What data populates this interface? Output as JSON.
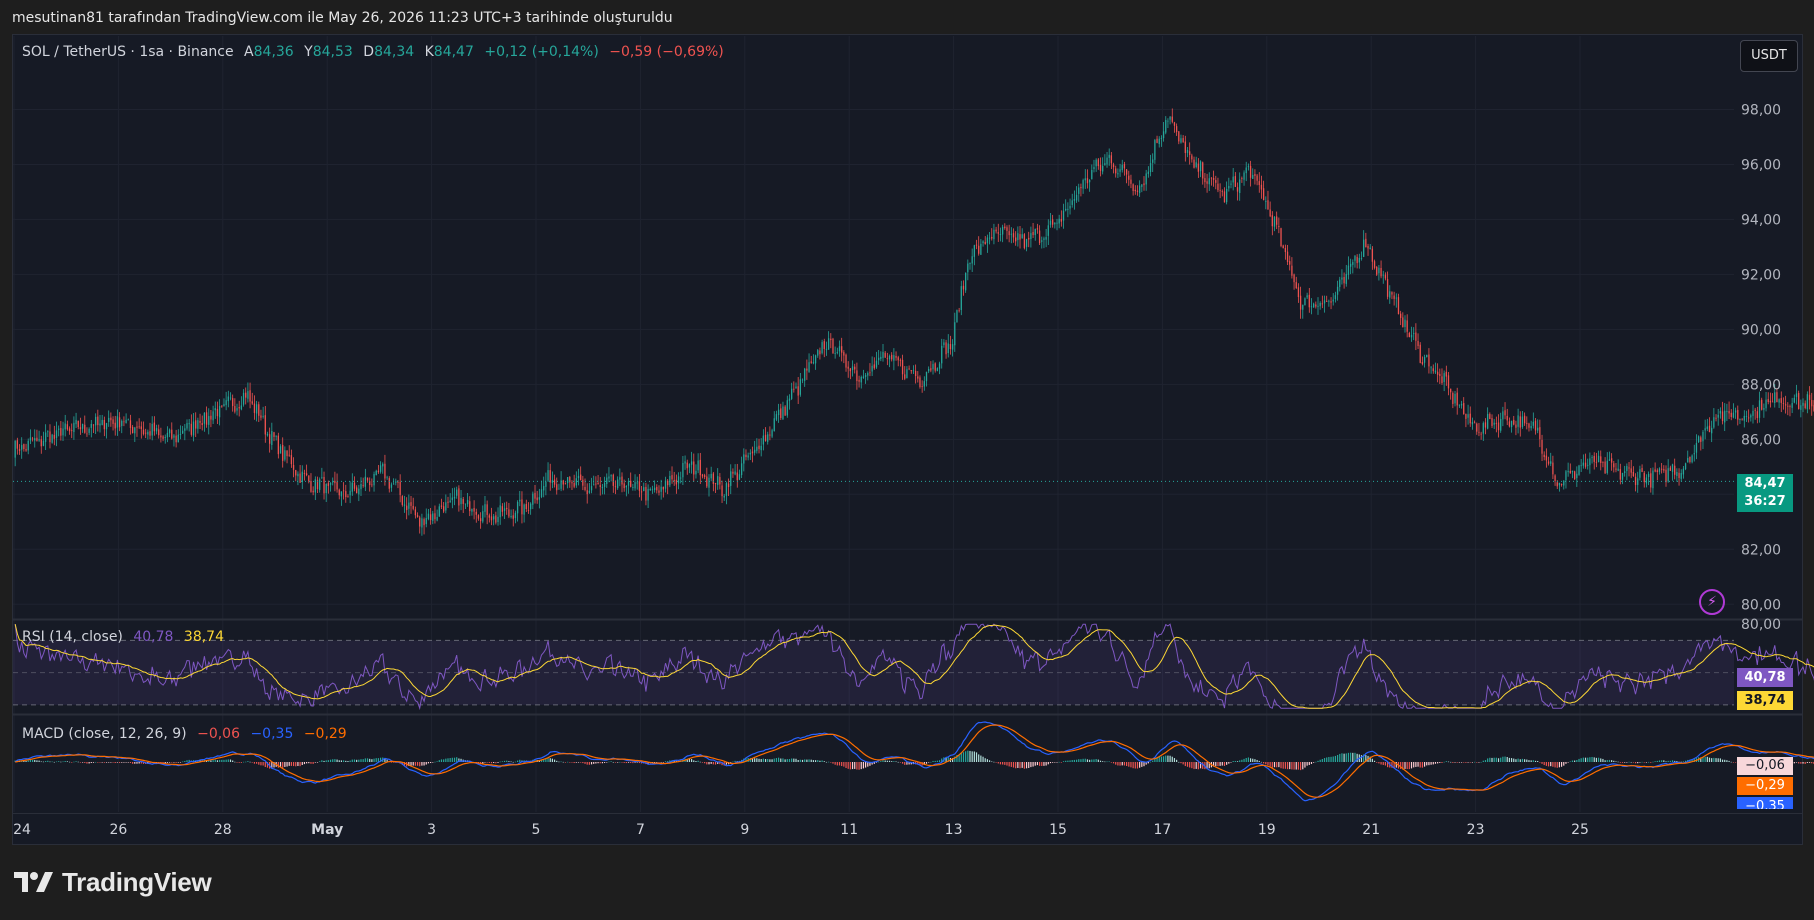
{
  "header": {
    "caption": "mesutinan81 tarafından TradingView.com ile May 26, 2026 11:23 UTC+3 tarihinde oluşturuldu"
  },
  "legend": {
    "symbol": "SOL / TetherUS · 1sa · Binance",
    "open_label": "A",
    "open_value": "84,36",
    "high_label": "Y",
    "high_value": "84,53",
    "low_label": "D",
    "low_value": "84,34",
    "close_label": "K",
    "close_value": "84,47",
    "change_bar": "+0,12 (+0,14%)",
    "change_day": "−0,59 (−0,69%)"
  },
  "currency_button": "USDT",
  "price_tag": {
    "price": "84,47",
    "countdown": "36:27"
  },
  "rsi": {
    "title": "RSI (14, close)",
    "rsi_value": "40,78",
    "ma_value": "38,74",
    "top_label": "80,00"
  },
  "macd": {
    "title": "MACD (close, 12, 26, 9)",
    "hist_value": "−0,06",
    "macd_value": "−0,35",
    "signal_value": "−0,29"
  },
  "brand": {
    "name": "TradingView"
  },
  "colors": {
    "up": "#26a69a",
    "down": "#ef5350",
    "rsi": "#7e57c2",
    "rsi_ma": "#fdd835",
    "macd": "#2962ff",
    "signal": "#ff6d00",
    "background": "#161a25"
  },
  "chart_data": [
    {
      "type": "candlestick",
      "title": "SOL / TetherUS · 1sa · Binance",
      "x_ticks": [
        "24",
        "26",
        "28",
        "May",
        "3",
        "5",
        "7",
        "9",
        "11",
        "13",
        "15",
        "17",
        "19",
        "21",
        "23",
        "25"
      ],
      "y_ticks": [
        "80,00",
        "82,00",
        "84,00",
        "86,00",
        "88,00",
        "90,00",
        "92,00",
        "94,00",
        "96,00",
        "98,00"
      ],
      "ylim": [
        79.5,
        99.8
      ],
      "last_price": 84.47,
      "close_path": [
        [
          0,
          85.6
        ],
        [
          1.0,
          86.3
        ],
        [
          2.0,
          86.7
        ],
        [
          3.0,
          86.0
        ],
        [
          3.5,
          86.6
        ],
        [
          4.5,
          87.6
        ],
        [
          5.0,
          85.9
        ],
        [
          5.6,
          84.5
        ],
        [
          6.4,
          84.0
        ],
        [
          7.1,
          84.8
        ],
        [
          7.8,
          83.0
        ],
        [
          8.5,
          83.8
        ],
        [
          9.2,
          83.2
        ],
        [
          9.8,
          83.5
        ],
        [
          10.3,
          84.6
        ],
        [
          11.0,
          84.2
        ],
        [
          11.6,
          84.4
        ],
        [
          12.3,
          84.0
        ],
        [
          13.0,
          85.1
        ],
        [
          13.6,
          84.2
        ],
        [
          14.3,
          85.8
        ],
        [
          15.0,
          87.8
        ],
        [
          15.6,
          89.6
        ],
        [
          16.2,
          88.3
        ],
        [
          16.7,
          89.0
        ],
        [
          17.4,
          88.2
        ],
        [
          18.0,
          89.6
        ],
        [
          18.3,
          92.6
        ],
        [
          18.8,
          93.5
        ],
        [
          19.4,
          93.2
        ],
        [
          20.0,
          93.8
        ],
        [
          20.6,
          95.6
        ],
        [
          21.0,
          96.2
        ],
        [
          21.6,
          95.1
        ],
        [
          22.1,
          97.8
        ],
        [
          22.6,
          96.0
        ],
        [
          23.2,
          94.9
        ],
        [
          23.7,
          95.8
        ],
        [
          24.1,
          94.2
        ],
        [
          24.7,
          90.9
        ],
        [
          25.3,
          91.1
        ],
        [
          25.9,
          93.2
        ],
        [
          26.3,
          91.6
        ],
        [
          26.9,
          89.3
        ],
        [
          27.4,
          88.1
        ],
        [
          28.0,
          86.4
        ],
        [
          28.6,
          86.8
        ],
        [
          29.2,
          86.3
        ],
        [
          29.6,
          84.4
        ],
        [
          30.2,
          85.2
        ],
        [
          30.8,
          84.8
        ],
        [
          31.4,
          84.6
        ],
        [
          32.0,
          85.0
        ],
        [
          32.6,
          86.9
        ],
        [
          33.2,
          86.9
        ],
        [
          33.8,
          87.5
        ],
        [
          34.4,
          87.3
        ],
        [
          35.0,
          84.7
        ],
        [
          35.5,
          82.3
        ],
        [
          36.1,
          86.2
        ],
        [
          36.7,
          86.1
        ],
        [
          37.2,
          85.2
        ],
        [
          37.8,
          86.0
        ],
        [
          38.2,
          85.1
        ],
        [
          38.8,
          84.47
        ]
      ],
      "note_x_units": "days since Apr 24, hourly candles"
    },
    {
      "type": "line",
      "title": "RSI (14, close)",
      "ylim": [
        25,
        82
      ],
      "levels": [
        70,
        50,
        30
      ],
      "series": [
        {
          "name": "RSI",
          "last": 40.78
        },
        {
          "name": "RSI MA",
          "last": 38.74
        }
      ]
    },
    {
      "type": "histogram+line",
      "title": "MACD (close, 12, 26, 9)",
      "series": [
        {
          "name": "Histogram",
          "last": -0.06
        },
        {
          "name": "MACD",
          "last": -0.35
        },
        {
          "name": "Signal",
          "last": -0.29
        }
      ]
    }
  ]
}
